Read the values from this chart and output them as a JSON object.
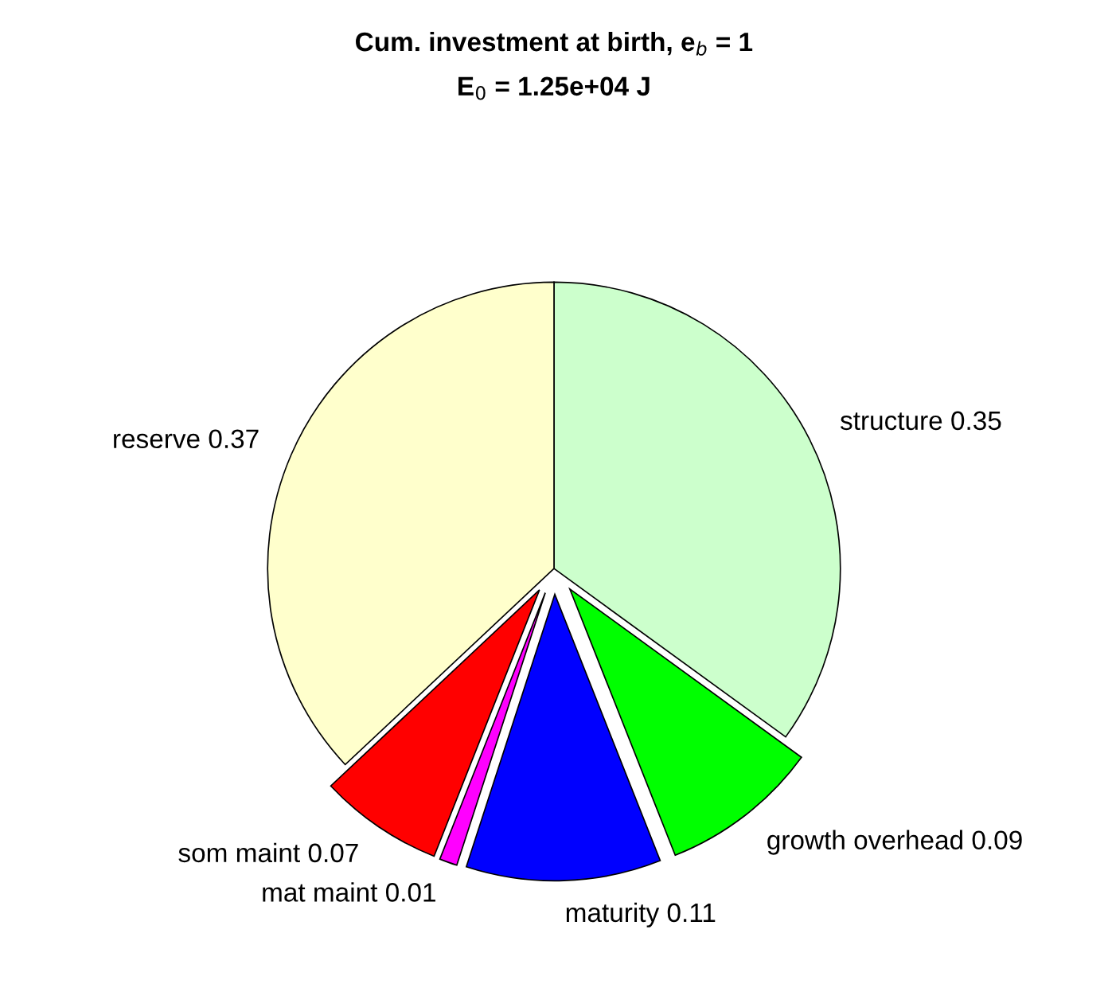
{
  "chart_data": {
    "type": "pie",
    "title": "Cum. investment at birth, e$_{b}$ = 1",
    "subtitle": "E$_{0}$ = 1.25e+04 J",
    "categories": [
      "structure 0.35",
      "growth overhead 0.09",
      "maturity 0.11",
      "mat maint 0.01",
      "som maint 0.07",
      "reserve 0.37"
    ],
    "values": [
      0.35,
      0.09,
      0.11,
      0.01,
      0.07,
      0.37
    ],
    "colors": [
      "#ccffcc",
      "#00ff00",
      "#0000ff",
      "#ff00ff",
      "#ff0000",
      "#ffffcc"
    ]
  }
}
